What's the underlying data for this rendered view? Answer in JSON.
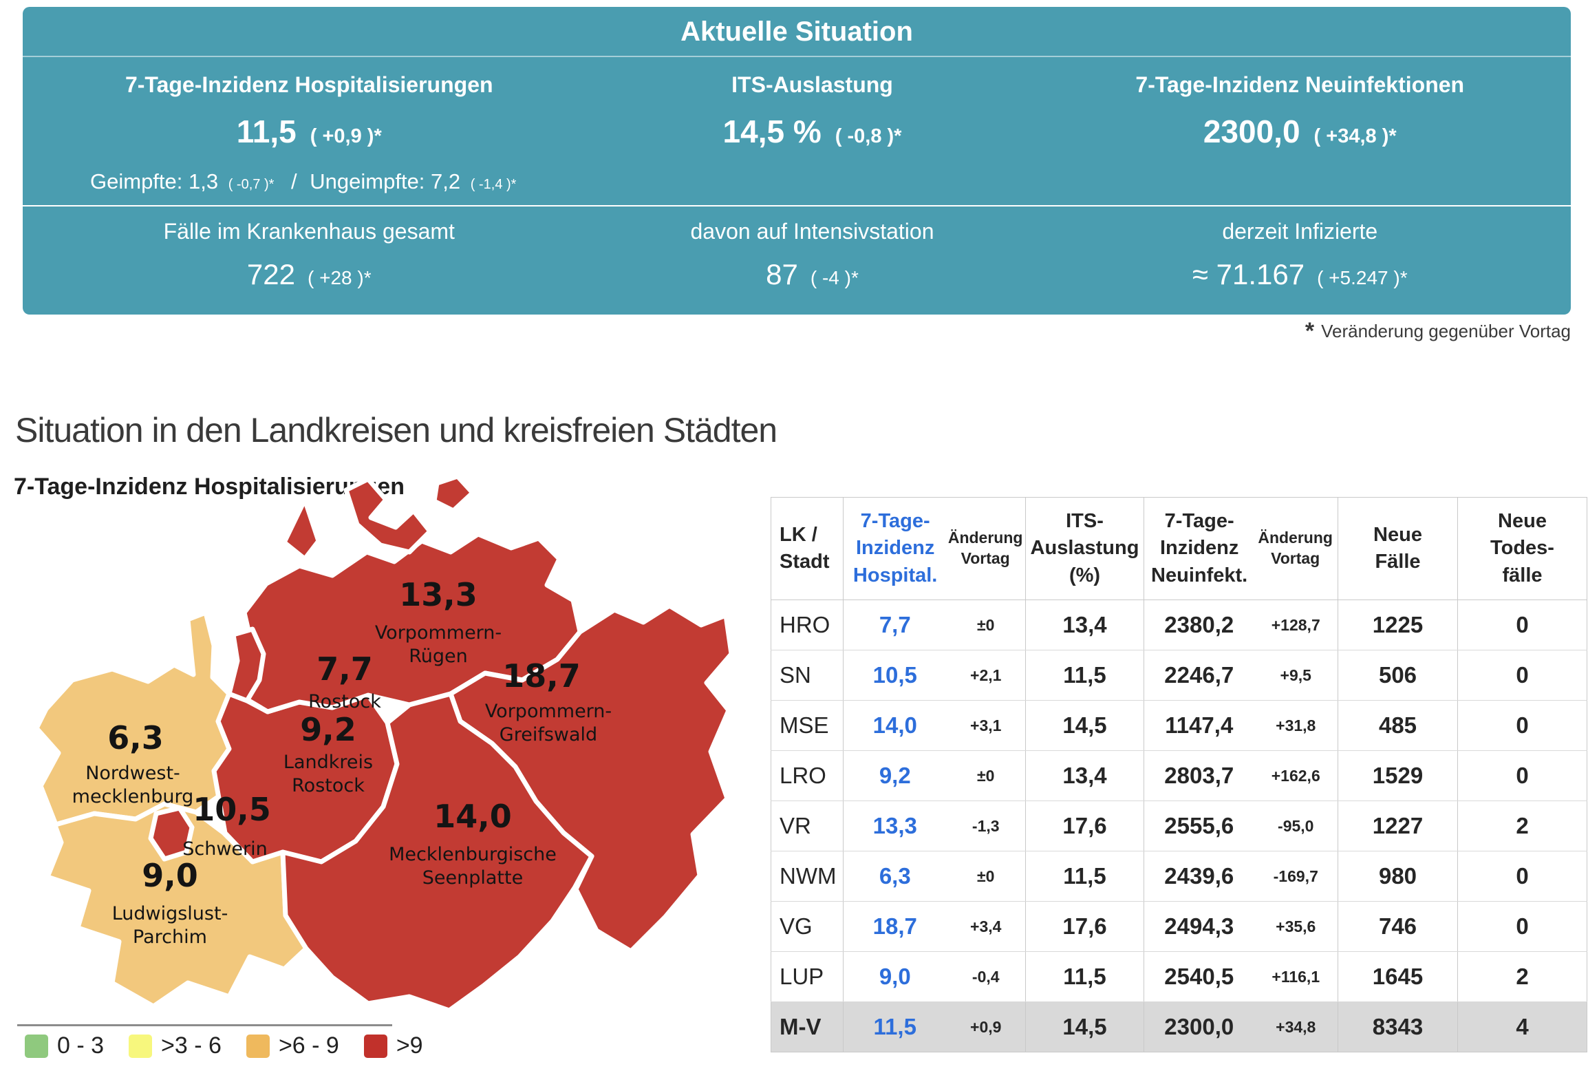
{
  "panel": {
    "title": "Aktuelle Situation",
    "metrics_top": [
      {
        "label": "7-Tage-Inzidenz Hospitalisierungen",
        "value": "11,5",
        "change": "( +0,9 )*"
      },
      {
        "label": "ITS-Auslastung",
        "value": "14,5 %",
        "change": "( -0,8 )*"
      },
      {
        "label": "7-Tage-Inzidenz Neuinfektionen",
        "value": "2300,0",
        "change": "( +34,8 )*"
      }
    ],
    "vaccination": {
      "text1": "Geimpfte: 1,3",
      "change1": "( -0,7 )*",
      "sep": "/",
      "text2": "Ungeimpfte: 7,2",
      "change2": "( -1,4 )*"
    },
    "metrics_bottom": [
      {
        "label": "Fälle im Krankenhaus gesamt",
        "value": "722",
        "change": "( +28 )*"
      },
      {
        "label": "davon auf Intensivstation",
        "value": "87",
        "change": "( -4 )*"
      },
      {
        "label": "derzeit Infizierte",
        "value": "≈ 71.167",
        "change": "( +5.247 )*"
      }
    ]
  },
  "footnote": {
    "marker": "*",
    "text": "Veränderung gegenüber Vortag"
  },
  "section_title": "Situation in den Landkreisen und kreisfreien Städten",
  "map": {
    "title": "7-Tage-Inzidenz Hospitalisierungen",
    "colors": {
      "red": "#C23B33",
      "orange": "#F2C87D"
    },
    "regions": [
      {
        "id": "vorpommern-ruegen",
        "value": "13,3",
        "name_line1": "Vorpommern-",
        "name_line2": "Rügen"
      },
      {
        "id": "rostock",
        "value": "7,7",
        "name_line1": "Rostock",
        "name_line2": ""
      },
      {
        "id": "landkreis-rostock",
        "value": "9,2",
        "name_line1": "Landkreis",
        "name_line2": "Rostock"
      },
      {
        "id": "vorpommern-greifswald",
        "value": "18,7",
        "name_line1": "Vorpommern-",
        "name_line2": "Greifswald"
      },
      {
        "id": "nordwestmecklenburg",
        "value": "6,3",
        "name_line1": "Nordwest-",
        "name_line2": "mecklenburg"
      },
      {
        "id": "schwerin",
        "value": "10,5",
        "name_line1": "Schwerin",
        "name_line2": ""
      },
      {
        "id": "mecklenburgische-seenplatte",
        "value": "14,0",
        "name_line1": "Mecklenburgische",
        "name_line2": "Seenplatte"
      },
      {
        "id": "ludwigslust-parchim",
        "value": "9,0",
        "name_line1": "Ludwigslust-",
        "name_line2": "Parchim"
      }
    ]
  },
  "legend": {
    "items": [
      {
        "label": "0 - 3",
        "color": "#8FC97E"
      },
      {
        "label": ">3 - 6",
        "color": "#F7F77D"
      },
      {
        "label": ">6 - 9",
        "color": "#EFB95D"
      },
      {
        "label": ">9",
        "color": "#C1312B"
      }
    ]
  },
  "table": {
    "headers": {
      "lk": "LK /\nStadt",
      "hosp": "7-Tage-\nInzidenz\nHospital.",
      "change": "Änderung\nVortag",
      "its": "ITS-\nAuslastung\n(%)",
      "neuinf": "7-Tage-\nInzidenz\nNeuinfekt.",
      "change2": "Änderung\nVortag",
      "neue_faelle": "Neue\nFälle",
      "neue_todesfaelle": "Neue\nTodes-\nfälle"
    },
    "rows": [
      {
        "cells": [
          "HRO",
          "7,7",
          "±0",
          "13,4",
          "2380,2",
          "+128,7",
          "1225",
          "0"
        ],
        "total": false
      },
      {
        "cells": [
          "SN",
          "10,5",
          "+2,1",
          "11,5",
          "2246,7",
          "+9,5",
          "506",
          "0"
        ],
        "total": false
      },
      {
        "cells": [
          "MSE",
          "14,0",
          "+3,1",
          "14,5",
          "1147,4",
          "+31,8",
          "485",
          "0"
        ],
        "total": false
      },
      {
        "cells": [
          "LRO",
          "9,2",
          "±0",
          "13,4",
          "2803,7",
          "+162,6",
          "1529",
          "0"
        ],
        "total": false
      },
      {
        "cells": [
          "VR",
          "13,3",
          "-1,3",
          "17,6",
          "2555,6",
          "-95,0",
          "1227",
          "2"
        ],
        "total": false
      },
      {
        "cells": [
          "NWM",
          "6,3",
          "±0",
          "11,5",
          "2439,6",
          "-169,7",
          "980",
          "0"
        ],
        "total": false
      },
      {
        "cells": [
          "VG",
          "18,7",
          "+3,4",
          "17,6",
          "2494,3",
          "+35,6",
          "746",
          "0"
        ],
        "total": false
      },
      {
        "cells": [
          "LUP",
          "9,0",
          "-0,4",
          "11,5",
          "2540,5",
          "+116,1",
          "1645",
          "2"
        ],
        "total": false
      },
      {
        "cells": [
          "M-V",
          "11,5",
          "+0,9",
          "14,5",
          "2300,0",
          "+34,8",
          "8343",
          "4"
        ],
        "total": true
      }
    ]
  },
  "chart_data": [
    {
      "type": "heatmap",
      "title": "7-Tage-Inzidenz Hospitalisierungen",
      "categories": [
        "Vorpommern-Rügen",
        "Rostock",
        "Landkreis Rostock",
        "Vorpommern-Greifswald",
        "Nordwestmecklenburg",
        "Schwerin",
        "Mecklenburgische Seenplatte",
        "Ludwigslust-Parchim"
      ],
      "values": [
        13.3,
        7.7,
        9.2,
        18.7,
        6.3,
        10.5,
        14.0,
        9.0
      ],
      "legend_bins": [
        "0 - 3",
        ">3 - 6",
        ">6 - 9",
        ">9"
      ],
      "legend_colors": [
        "#8FC97E",
        "#F7F77D",
        "#EFB95D",
        "#C1312B"
      ],
      "legend_position": "bottom-left"
    },
    {
      "type": "table",
      "columns": [
        "LK / Stadt",
        "7-Tage-Inzidenz Hospital.",
        "Änderung Vortag",
        "ITS-Auslastung (%)",
        "7-Tage-Inzidenz Neuinfekt.",
        "Änderung Vortag",
        "Neue Fälle",
        "Neue Todes-fälle"
      ],
      "rows": [
        [
          "HRO",
          7.7,
          "±0",
          13.4,
          2380.2,
          128.7,
          1225,
          0
        ],
        [
          "SN",
          10.5,
          2.1,
          11.5,
          2246.7,
          9.5,
          506,
          0
        ],
        [
          "MSE",
          14.0,
          3.1,
          14.5,
          1147.4,
          31.8,
          485,
          0
        ],
        [
          "LRO",
          9.2,
          "±0",
          13.4,
          2803.7,
          162.6,
          1529,
          0
        ],
        [
          "VR",
          13.3,
          -1.3,
          17.6,
          2555.6,
          -95.0,
          1227,
          2
        ],
        [
          "NWM",
          6.3,
          "±0",
          11.5,
          2439.6,
          -169.7,
          980,
          0
        ],
        [
          "VG",
          18.7,
          3.4,
          17.6,
          2494.3,
          35.6,
          746,
          0
        ],
        [
          "LUP",
          9.0,
          -0.4,
          11.5,
          2540.5,
          116.1,
          1645,
          2
        ],
        [
          "M-V",
          11.5,
          0.9,
          14.5,
          2300.0,
          34.8,
          8343,
          4
        ]
      ]
    }
  ]
}
